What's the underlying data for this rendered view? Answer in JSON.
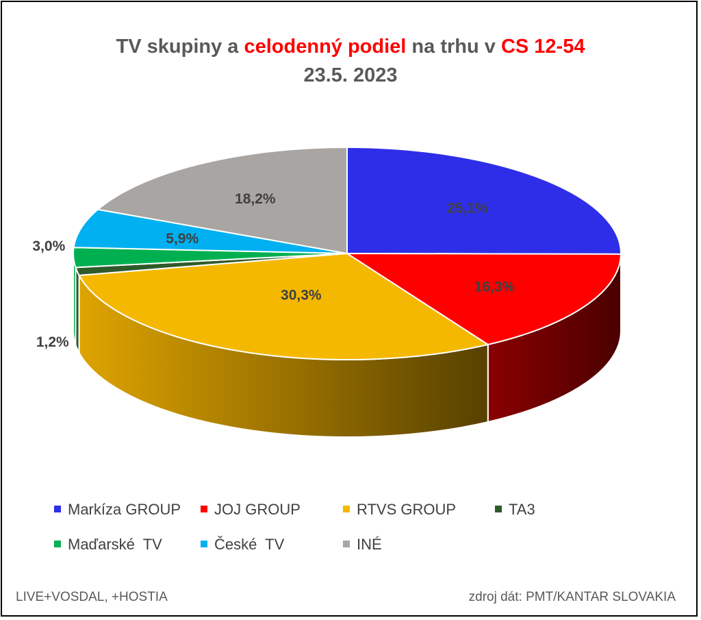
{
  "title": {
    "part1": "TV skupiny a ",
    "part2": "celodenný podiel",
    "part3": " na trhu v ",
    "part4": "CS 12-54",
    "line2": "23.5. 2023"
  },
  "colors": {
    "title_text": "#595959",
    "title_highlight": "#ff0000"
  },
  "chart_data": {
    "type": "pie",
    "three_d": true,
    "categories": [
      "Markíza GROUP",
      "JOJ GROUP",
      "RTVS GROUP",
      "TA3",
      "Maďarské  TV",
      "České  TV",
      "INÉ"
    ],
    "values": [
      25.1,
      16.3,
      30.3,
      1.2,
      3.0,
      5.9,
      18.2
    ],
    "labels": [
      "25,1%",
      "16,3%",
      "30,3%",
      "1,2%",
      "3,0%",
      "5,9%",
      "18,2%"
    ],
    "colors": [
      "#2e2ee8",
      "#ff0000",
      "#f5b800",
      "#2f5a2a",
      "#00b050",
      "#00b0f0",
      "#a8a5a3"
    ],
    "legend_position": "bottom"
  },
  "footer": {
    "left": "LIVE+VOSDAL, +HOSTIA",
    "right": "zdroj dát: PMT/KANTAR SLOVAKIA"
  }
}
